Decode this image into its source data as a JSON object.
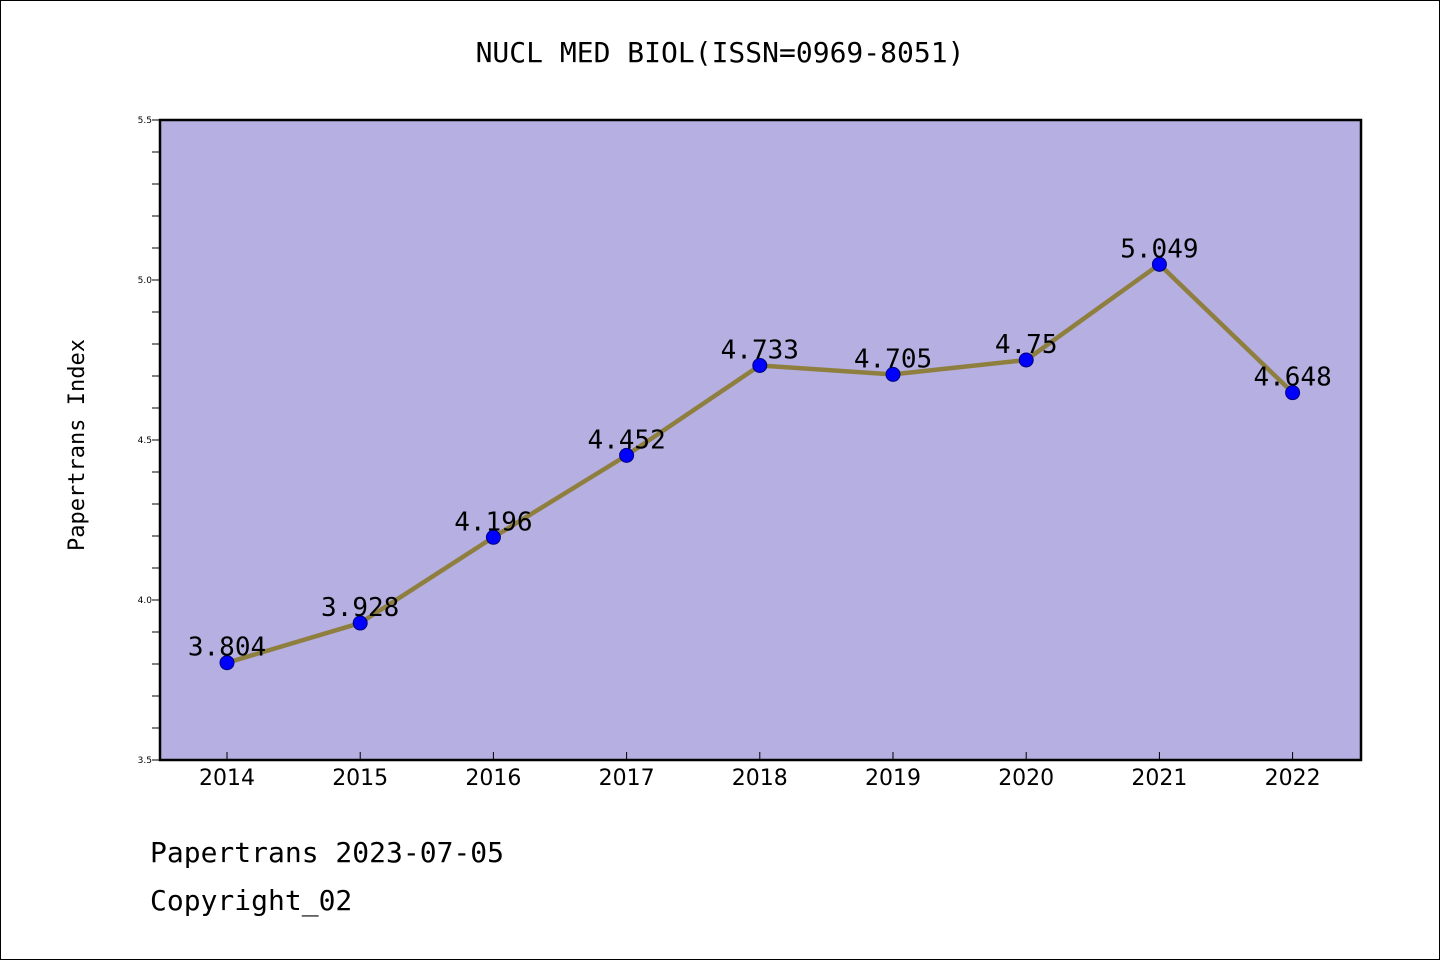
{
  "title": "NUCL MED BIOL(ISSN=0969-8051)",
  "footer": {
    "line1": "Papertrans 2023-07-05",
    "line2": "Copyright_02"
  },
  "chart_data": {
    "type": "line",
    "title": "NUCL MED BIOL(ISSN=0969-8051)",
    "xlabel": "",
    "ylabel": "Papertrans Index",
    "categories": [
      "2014",
      "2015",
      "2016",
      "2017",
      "2018",
      "2019",
      "2020",
      "2021",
      "2022"
    ],
    "series": [
      {
        "values": [
          3.804,
          3.928,
          4.196,
          4.452,
          4.733,
          4.705,
          4.75,
          5.049,
          4.648
        ],
        "labels": [
          "3.804",
          "3.928",
          "4.196",
          "4.452",
          "4.733",
          "4.705",
          "4.75",
          "5.049",
          "4.648"
        ]
      }
    ],
    "ylim": [
      3.5,
      5.5
    ],
    "yticks": [
      "3.5",
      "4.0",
      "4.5",
      "5.0",
      "5.5"
    ],
    "grid": false,
    "colors": {
      "plot_background": "#b5afe2",
      "line": "#8f7f3f",
      "marker": "#0000ff"
    }
  }
}
